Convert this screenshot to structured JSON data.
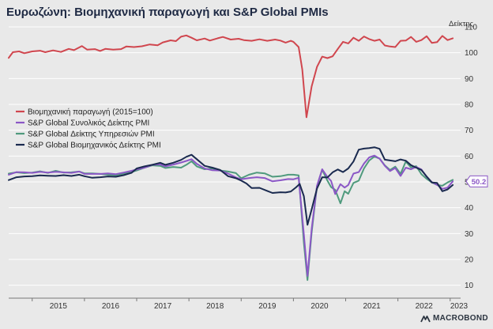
{
  "colors": {
    "industrial": "#d0464e",
    "composite": "#8b57c6",
    "services": "#4f9a7d",
    "manufacturing": "#1a2a4f",
    "grid": "#ffffff",
    "axis": "#333333",
    "callout": "#8b57c6"
  },
  "brand": {
    "name": "MACROBOND",
    "icon": "macrobond-logo-icon"
  },
  "chart_data": {
    "type": "line",
    "title": "Ευρωζώνη: Βιομηχανική παραγωγή και S&P Global PMIs",
    "ylabel": "Δείκτης",
    "xlabel": "",
    "ylim": [
      5,
      110
    ],
    "yticks": [
      10,
      20,
      30,
      40,
      50,
      60,
      70,
      80,
      90,
      100,
      110
    ],
    "xlim": [
      2014.55,
      2023.2
    ],
    "xticks": [
      "2015",
      "2016",
      "2017",
      "2018",
      "2019",
      "2020",
      "2021",
      "2022",
      "2023"
    ],
    "grid": true,
    "legend_position": "center-left",
    "callout": {
      "label": "50.2",
      "x": 2022.9,
      "y": 50.2,
      "series": "S&P Global Συνολικός Δείκτης PMI"
    },
    "series": [
      {
        "name": "Βιομηχανική παραγωγή (2015=100)",
        "key": "industrial",
        "points": [
          [
            2014.55,
            98
          ],
          [
            2014.63,
            100.2
          ],
          [
            2014.75,
            100.5
          ],
          [
            2014.85,
            99.8
          ],
          [
            2015.0,
            100.5
          ],
          [
            2015.15,
            100.8
          ],
          [
            2015.25,
            100.2
          ],
          [
            2015.4,
            100.9
          ],
          [
            2015.55,
            100.3
          ],
          [
            2015.7,
            101.5
          ],
          [
            2015.8,
            101
          ],
          [
            2015.95,
            102.6
          ],
          [
            2016.05,
            101.2
          ],
          [
            2016.2,
            101.4
          ],
          [
            2016.3,
            100.7
          ],
          [
            2016.4,
            101.5
          ],
          [
            2016.55,
            101.2
          ],
          [
            2016.7,
            101.4
          ],
          [
            2016.8,
            102.4
          ],
          [
            2016.95,
            102.2
          ],
          [
            2017.1,
            102.5
          ],
          [
            2017.25,
            103.2
          ],
          [
            2017.4,
            102.9
          ],
          [
            2017.5,
            104
          ],
          [
            2017.65,
            104.8
          ],
          [
            2017.75,
            104.5
          ],
          [
            2017.85,
            106.2
          ],
          [
            2017.95,
            106.7
          ],
          [
            2018.05,
            105.8
          ],
          [
            2018.15,
            104.8
          ],
          [
            2018.3,
            105.5
          ],
          [
            2018.4,
            104.7
          ],
          [
            2018.55,
            105.6
          ],
          [
            2018.65,
            106.1
          ],
          [
            2018.8,
            105.1
          ],
          [
            2018.95,
            105.4
          ],
          [
            2019.05,
            104.9
          ],
          [
            2019.2,
            104.6
          ],
          [
            2019.35,
            105.2
          ],
          [
            2019.5,
            104.6
          ],
          [
            2019.65,
            105.1
          ],
          [
            2019.75,
            104.7
          ],
          [
            2019.85,
            103.9
          ],
          [
            2019.95,
            104.6
          ],
          [
            2020.0,
            104.2
          ],
          [
            2020.1,
            102.2
          ],
          [
            2020.17,
            93.5
          ],
          [
            2020.25,
            75
          ],
          [
            2020.35,
            87
          ],
          [
            2020.45,
            94.5
          ],
          [
            2020.55,
            98.5
          ],
          [
            2020.65,
            97.9
          ],
          [
            2020.75,
            98.6
          ],
          [
            2020.85,
            101.5
          ],
          [
            2020.95,
            104.2
          ],
          [
            2021.05,
            103.6
          ],
          [
            2021.15,
            105.8
          ],
          [
            2021.25,
            104.6
          ],
          [
            2021.35,
            106.3
          ],
          [
            2021.45,
            105.3
          ],
          [
            2021.55,
            104.6
          ],
          [
            2021.65,
            105.1
          ],
          [
            2021.75,
            102.8
          ],
          [
            2021.85,
            102.4
          ],
          [
            2021.95,
            102.2
          ],
          [
            2022.05,
            104.6
          ],
          [
            2022.15,
            104.7
          ],
          [
            2022.25,
            106.1
          ],
          [
            2022.35,
            104.2
          ],
          [
            2022.45,
            104.9
          ],
          [
            2022.55,
            106.4
          ],
          [
            2022.65,
            103.8
          ],
          [
            2022.75,
            104.1
          ],
          [
            2022.85,
            106.5
          ],
          [
            2022.95,
            104.9
          ],
          [
            2023.05,
            105.6
          ]
        ]
      },
      {
        "name": "S&P Global Συνολικός Δείκτης PMI",
        "key": "composite",
        "points": [
          [
            2014.55,
            52.8
          ],
          [
            2014.7,
            53.8
          ],
          [
            2014.85,
            53.7
          ],
          [
            2015.0,
            53.5
          ],
          [
            2015.15,
            53.9
          ],
          [
            2015.3,
            53.6
          ],
          [
            2015.45,
            53.9
          ],
          [
            2015.6,
            53.7
          ],
          [
            2015.75,
            53.5
          ],
          [
            2015.9,
            54
          ],
          [
            2016.0,
            53.1
          ],
          [
            2016.15,
            53.1
          ],
          [
            2016.3,
            53.1
          ],
          [
            2016.45,
            53.3
          ],
          [
            2016.6,
            53
          ],
          [
            2016.75,
            53.6
          ],
          [
            2016.9,
            54.3
          ],
          [
            2017.0,
            54.8
          ],
          [
            2017.15,
            55.5
          ],
          [
            2017.3,
            56.6
          ],
          [
            2017.45,
            56.8
          ],
          [
            2017.55,
            56
          ],
          [
            2017.7,
            56.7
          ],
          [
            2017.85,
            57.5
          ],
          [
            2017.95,
            58.1
          ],
          [
            2018.05,
            58.8
          ],
          [
            2018.15,
            57
          ],
          [
            2018.3,
            55.2
          ],
          [
            2018.45,
            54.5
          ],
          [
            2018.6,
            54.4
          ],
          [
            2018.75,
            53.2
          ],
          [
            2018.9,
            51.7
          ],
          [
            2019.0,
            51
          ],
          [
            2019.15,
            51.5
          ],
          [
            2019.3,
            51.8
          ],
          [
            2019.45,
            51.5
          ],
          [
            2019.6,
            50.2
          ],
          [
            2019.75,
            50.6
          ],
          [
            2019.9,
            51.1
          ],
          [
            2020.0,
            51
          ],
          [
            2020.1,
            51.6
          ],
          [
            2020.2,
            29.7
          ],
          [
            2020.27,
            13.6
          ],
          [
            2020.35,
            31.9
          ],
          [
            2020.45,
            48.5
          ],
          [
            2020.55,
            54.9
          ],
          [
            2020.65,
            51.9
          ],
          [
            2020.72,
            50.4
          ],
          [
            2020.8,
            45.3
          ],
          [
            2020.9,
            49.1
          ],
          [
            2020.98,
            47.8
          ],
          [
            2021.05,
            48.8
          ],
          [
            2021.15,
            53.2
          ],
          [
            2021.25,
            53.8
          ],
          [
            2021.35,
            57.1
          ],
          [
            2021.45,
            59.5
          ],
          [
            2021.55,
            60.2
          ],
          [
            2021.65,
            59
          ],
          [
            2021.75,
            56.2
          ],
          [
            2021.85,
            54.2
          ],
          [
            2021.95,
            55.4
          ],
          [
            2022.05,
            52.3
          ],
          [
            2022.15,
            55.5
          ],
          [
            2022.25,
            54.9
          ],
          [
            2022.35,
            55.8
          ],
          [
            2022.45,
            54.8
          ],
          [
            2022.55,
            52
          ],
          [
            2022.65,
            49.9
          ],
          [
            2022.75,
            48.9
          ],
          [
            2022.85,
            47.3
          ],
          [
            2022.95,
            47.8
          ],
          [
            2023.05,
            50.2
          ]
        ]
      },
      {
        "name": "S&P Global Δείκτης Υπηρεσιών PMI",
        "key": "services",
        "points": [
          [
            2014.55,
            53.2
          ],
          [
            2014.7,
            53.7
          ],
          [
            2014.85,
            53.4
          ],
          [
            2015.0,
            53.6
          ],
          [
            2015.15,
            54.1
          ],
          [
            2015.3,
            53.5
          ],
          [
            2015.45,
            54.3
          ],
          [
            2015.6,
            53.6
          ],
          [
            2015.75,
            53.7
          ],
          [
            2015.9,
            54
          ],
          [
            2016.0,
            53.3
          ],
          [
            2016.15,
            53.3
          ],
          [
            2016.3,
            53.1
          ],
          [
            2016.45,
            52.8
          ],
          [
            2016.6,
            52.6
          ],
          [
            2016.75,
            53.2
          ],
          [
            2016.9,
            53.8
          ],
          [
            2017.0,
            54.4
          ],
          [
            2017.15,
            55.5
          ],
          [
            2017.3,
            56.4
          ],
          [
            2017.45,
            56.2
          ],
          [
            2017.55,
            55.4
          ],
          [
            2017.7,
            55.8
          ],
          [
            2017.85,
            55.5
          ],
          [
            2017.95,
            56.6
          ],
          [
            2018.05,
            58
          ],
          [
            2018.15,
            56
          ],
          [
            2018.3,
            54.9
          ],
          [
            2018.45,
            55.2
          ],
          [
            2018.6,
            54.4
          ],
          [
            2018.75,
            54
          ],
          [
            2018.9,
            53.4
          ],
          [
            2019.0,
            51.4
          ],
          [
            2019.15,
            52.8
          ],
          [
            2019.3,
            53.6
          ],
          [
            2019.45,
            53.3
          ],
          [
            2019.6,
            52
          ],
          [
            2019.75,
            52.2
          ],
          [
            2019.9,
            52.8
          ],
          [
            2020.0,
            52.8
          ],
          [
            2020.1,
            52.5
          ],
          [
            2020.2,
            26.4
          ],
          [
            2020.27,
            12
          ],
          [
            2020.35,
            30.5
          ],
          [
            2020.45,
            48.3
          ],
          [
            2020.55,
            54.7
          ],
          [
            2020.65,
            50.5
          ],
          [
            2020.72,
            48
          ],
          [
            2020.8,
            46.9
          ],
          [
            2020.9,
            41.7
          ],
          [
            2020.98,
            46.4
          ],
          [
            2021.05,
            45.4
          ],
          [
            2021.15,
            49.6
          ],
          [
            2021.25,
            50.5
          ],
          [
            2021.35,
            55.2
          ],
          [
            2021.45,
            58.3
          ],
          [
            2021.55,
            59.8
          ],
          [
            2021.65,
            59
          ],
          [
            2021.75,
            56.4
          ],
          [
            2021.85,
            54.6
          ],
          [
            2021.95,
            55.9
          ],
          [
            2022.05,
            53.1
          ],
          [
            2022.15,
            57.9
          ],
          [
            2022.25,
            55.6
          ],
          [
            2022.35,
            56.1
          ],
          [
            2022.45,
            53
          ],
          [
            2022.55,
            51.2
          ],
          [
            2022.65,
            49.8
          ],
          [
            2022.75,
            48.8
          ],
          [
            2022.85,
            48.5
          ],
          [
            2022.95,
            49.8
          ],
          [
            2023.05,
            50.8
          ]
        ]
      },
      {
        "name": "S&P Global Βιομηχανικός Δείκτης PMI",
        "key": "manufacturing",
        "points": [
          [
            2014.55,
            50.7
          ],
          [
            2014.7,
            51.8
          ],
          [
            2014.85,
            52.1
          ],
          [
            2015.0,
            52.2
          ],
          [
            2015.15,
            52.5
          ],
          [
            2015.3,
            52.4
          ],
          [
            2015.45,
            52.3
          ],
          [
            2015.6,
            52.6
          ],
          [
            2015.75,
            52.3
          ],
          [
            2015.9,
            52.8
          ],
          [
            2016.0,
            52.2
          ],
          [
            2016.15,
            51.6
          ],
          [
            2016.3,
            51.8
          ],
          [
            2016.45,
            52.1
          ],
          [
            2016.6,
            52
          ],
          [
            2016.75,
            52.6
          ],
          [
            2016.9,
            53.5
          ],
          [
            2017.0,
            55.2
          ],
          [
            2017.15,
            56
          ],
          [
            2017.3,
            56.6
          ],
          [
            2017.45,
            57.4
          ],
          [
            2017.55,
            56.6
          ],
          [
            2017.7,
            57.4
          ],
          [
            2017.85,
            58.5
          ],
          [
            2017.95,
            59.7
          ],
          [
            2018.05,
            60.5
          ],
          [
            2018.15,
            58.8
          ],
          [
            2018.3,
            56.2
          ],
          [
            2018.45,
            55.5
          ],
          [
            2018.6,
            54.6
          ],
          [
            2018.75,
            52.2
          ],
          [
            2018.9,
            51.4
          ],
          [
            2019.0,
            50.5
          ],
          [
            2019.1,
            49.4
          ],
          [
            2019.2,
            47.6
          ],
          [
            2019.35,
            47.7
          ],
          [
            2019.5,
            46.5
          ],
          [
            2019.6,
            45.7
          ],
          [
            2019.75,
            46
          ],
          [
            2019.85,
            45.9
          ],
          [
            2019.95,
            46.3
          ],
          [
            2020.05,
            47.9
          ],
          [
            2020.12,
            49.2
          ],
          [
            2020.2,
            44.5
          ],
          [
            2020.27,
            33.4
          ],
          [
            2020.35,
            39.4
          ],
          [
            2020.45,
            47.4
          ],
          [
            2020.55,
            51.8
          ],
          [
            2020.65,
            51.7
          ],
          [
            2020.75,
            53.7
          ],
          [
            2020.85,
            54.8
          ],
          [
            2020.95,
            53.8
          ],
          [
            2021.05,
            55.2
          ],
          [
            2021.15,
            57.9
          ],
          [
            2021.25,
            62.5
          ],
          [
            2021.35,
            62.9
          ],
          [
            2021.45,
            63.1
          ],
          [
            2021.55,
            63.4
          ],
          [
            2021.65,
            62.8
          ],
          [
            2021.75,
            58.6
          ],
          [
            2021.85,
            58.3
          ],
          [
            2021.95,
            58
          ],
          [
            2022.05,
            58.7
          ],
          [
            2022.15,
            58.2
          ],
          [
            2022.25,
            56.5
          ],
          [
            2022.35,
            55.5
          ],
          [
            2022.45,
            54.6
          ],
          [
            2022.55,
            52.1
          ],
          [
            2022.65,
            49.8
          ],
          [
            2022.75,
            49.6
          ],
          [
            2022.85,
            46.4
          ],
          [
            2022.95,
            47.1
          ],
          [
            2023.05,
            48.8
          ]
        ]
      }
    ]
  }
}
